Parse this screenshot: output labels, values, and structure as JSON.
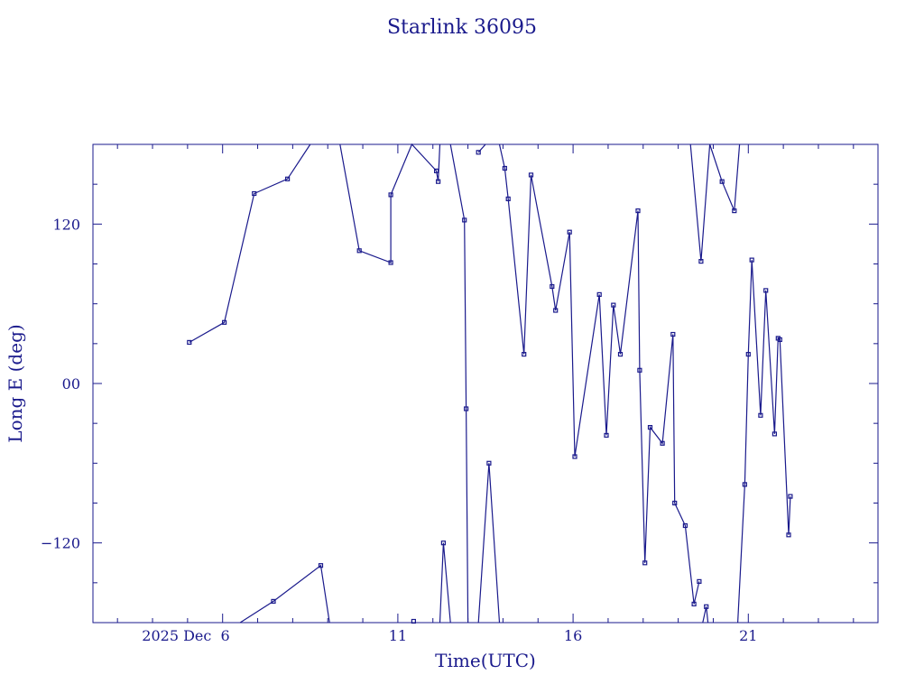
{
  "chart_data": {
    "type": "line",
    "title": "Starlink 36095",
    "xlabel": "Time(UTC)",
    "ylabel": "Long E (deg)",
    "x_unit": "day of December 2025",
    "xlim": [
      2.3,
      24.7
    ],
    "ylim": [
      -180,
      180
    ],
    "x_ticks": [
      {
        "value": 6,
        "label": "2025 Dec  6"
      },
      {
        "value": 11,
        "label": "11"
      },
      {
        "value": 16,
        "label": "16"
      },
      {
        "value": 21,
        "label": "21"
      }
    ],
    "y_ticks": [
      {
        "value": 120,
        "label": "120"
      },
      {
        "value": 0,
        "label": "00"
      },
      {
        "value": -120,
        "label": "−120"
      }
    ],
    "grid": false,
    "series": [
      {
        "points": [
          [
            5.05,
            31
          ],
          [
            6.05,
            46
          ],
          [
            6.9,
            143
          ],
          [
            7.85,
            154
          ],
          [
            8.5,
            180
          ]
        ]
      },
      {
        "points": [
          [
            6.5,
            -180
          ],
          [
            7.45,
            -164
          ],
          [
            8.8,
            -137
          ],
          [
            9.05,
            -180
          ]
        ]
      },
      {
        "points": [
          [
            9.35,
            180
          ],
          [
            9.9,
            100
          ],
          [
            10.8,
            91
          ],
          [
            10.8,
            142
          ],
          [
            11.4,
            180
          ],
          [
            12.1,
            160
          ],
          [
            12.15,
            152
          ],
          [
            12.2,
            180
          ]
        ]
      },
      {
        "points": [
          [
            12.2,
            -180
          ],
          [
            12.3,
            -120
          ],
          [
            12.5,
            -180
          ]
        ]
      },
      {
        "points": [
          [
            12.5,
            180
          ],
          [
            12.9,
            123
          ],
          [
            12.95,
            -19
          ],
          [
            13.0,
            -180
          ]
        ]
      },
      {
        "points": [
          [
            13.3,
            174
          ],
          [
            13.5,
            180
          ]
        ]
      },
      {
        "points": [
          [
            13.3,
            -180
          ],
          [
            13.6,
            -60
          ],
          [
            13.9,
            -180
          ]
        ]
      },
      {
        "points": [
          [
            13.9,
            180
          ],
          [
            14.05,
            162
          ],
          [
            14.15,
            139
          ],
          [
            14.6,
            22
          ],
          [
            14.8,
            157
          ],
          [
            15.4,
            73
          ],
          [
            15.5,
            55
          ],
          [
            15.9,
            114
          ],
          [
            16.05,
            -55
          ],
          [
            16.75,
            67
          ],
          [
            16.95,
            -39
          ],
          [
            17.15,
            59
          ],
          [
            17.35,
            22
          ],
          [
            17.85,
            130
          ],
          [
            17.9,
            10
          ],
          [
            18.05,
            -135
          ],
          [
            18.2,
            -33
          ],
          [
            18.55,
            -45
          ],
          [
            18.85,
            37
          ],
          [
            18.9,
            -90
          ],
          [
            19.2,
            -107
          ],
          [
            19.45,
            -166
          ],
          [
            19.6,
            -149
          ]
        ]
      },
      {
        "points": [
          [
            19.35,
            180
          ],
          [
            19.65,
            92
          ],
          [
            19.9,
            180
          ]
        ]
      },
      {
        "points": [
          [
            19.7,
            -180
          ],
          [
            19.8,
            -168
          ],
          [
            19.85,
            -180
          ]
        ]
      },
      {
        "points": [
          [
            19.9,
            180
          ],
          [
            20.25,
            152
          ],
          [
            20.6,
            130
          ],
          [
            20.75,
            180
          ]
        ]
      },
      {
        "points": [
          [
            20.7,
            -180
          ],
          [
            20.9,
            -76
          ],
          [
            21.0,
            22
          ],
          [
            21.1,
            93
          ],
          [
            21.35,
            -24
          ],
          [
            21.5,
            70
          ],
          [
            21.75,
            -38
          ],
          [
            21.85,
            34
          ],
          [
            21.9,
            33
          ],
          [
            22.15,
            -114
          ],
          [
            22.2,
            -85
          ]
        ]
      },
      {
        "points": [
          [
            11.45,
            -179
          ]
        ]
      }
    ]
  }
}
